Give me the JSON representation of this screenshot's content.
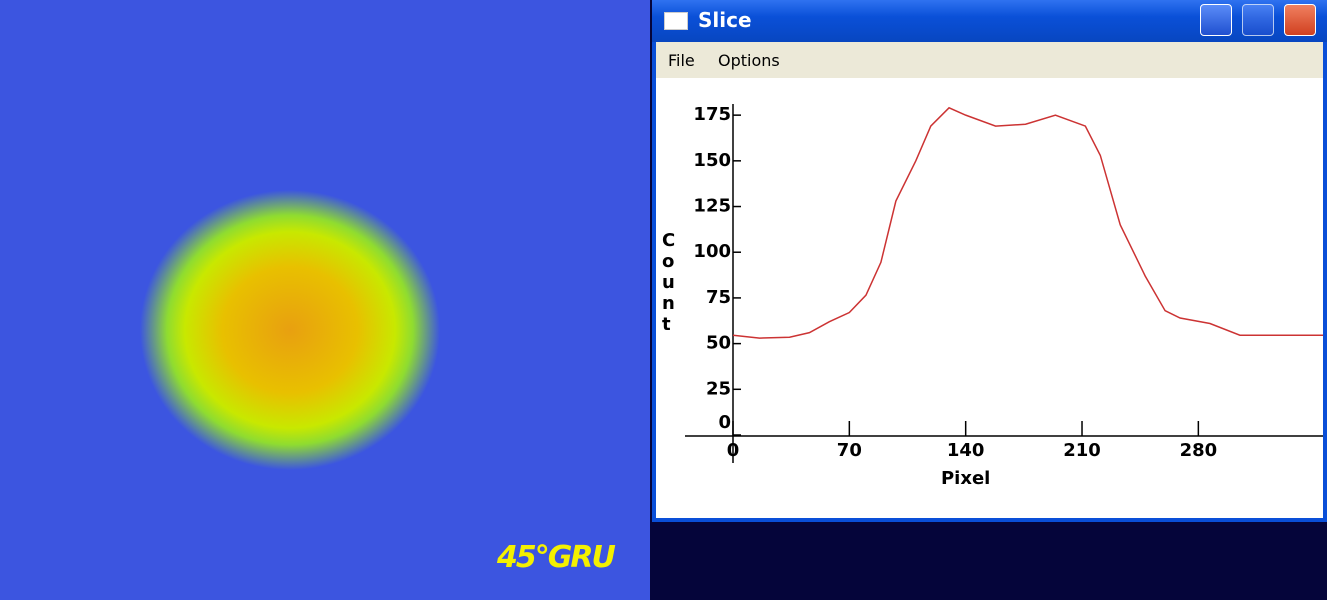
{
  "image": {
    "label": "45°GRU"
  },
  "window": {
    "title": "Slice",
    "menu": [
      "File",
      "Options"
    ]
  },
  "chart_data": {
    "type": "line",
    "x_label": "Pixel",
    "y_label": "Count",
    "x": [
      0,
      16,
      34,
      46,
      58,
      70,
      80,
      89,
      98,
      110,
      119,
      130,
      140,
      158,
      176,
      194,
      212,
      221,
      233,
      248,
      260,
      269,
      287,
      305,
      355
    ],
    "series": [
      {
        "name": "Count",
        "color": "#cc3333",
        "values": [
          54.6,
          53,
          53.5,
          56,
          62,
          67,
          76.5,
          94.5,
          128,
          150,
          169,
          179,
          175,
          169,
          170,
          175,
          169,
          153,
          115,
          87,
          68,
          64,
          61,
          54.6,
          54.6
        ]
      }
    ],
    "xlim": [
      0,
      355
    ],
    "ylim": [
      0,
      180
    ],
    "xticks": [
      0,
      70,
      140,
      210,
      280
    ],
    "yticks": [
      0,
      25,
      50,
      75,
      100,
      125,
      150,
      175
    ]
  }
}
